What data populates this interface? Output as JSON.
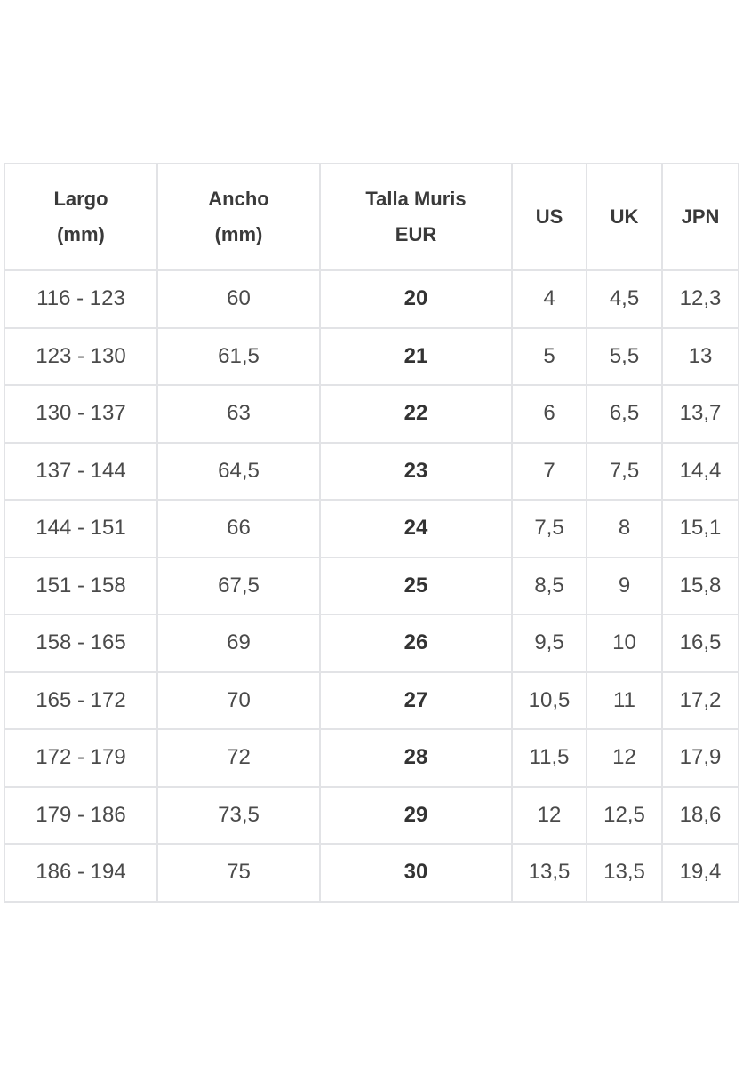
{
  "table": {
    "headers": [
      {
        "line1": "Largo",
        "line2": "(mm)"
      },
      {
        "line1": "Ancho",
        "line2": "(mm)"
      },
      {
        "line1": "Talla Muris",
        "line2": "EUR"
      },
      {
        "line1": "US",
        "line2": ""
      },
      {
        "line1": "UK",
        "line2": ""
      },
      {
        "line1": "JPN",
        "line2": ""
      }
    ],
    "rows": [
      [
        "116 - 123",
        "60",
        "20",
        "4",
        "4,5",
        "12,3"
      ],
      [
        "123 - 130",
        "61,5",
        "21",
        "5",
        "5,5",
        "13"
      ],
      [
        "130 - 137",
        "63",
        "22",
        "6",
        "6,5",
        "13,7"
      ],
      [
        "137 - 144",
        "64,5",
        "23",
        "7",
        "7,5",
        "14,4"
      ],
      [
        "144 - 151",
        "66",
        "24",
        "7,5",
        "8",
        "15,1"
      ],
      [
        "151 - 158",
        "67,5",
        "25",
        "8,5",
        "9",
        "15,8"
      ],
      [
        "158 - 165",
        "69",
        "26",
        "9,5",
        "10",
        "16,5"
      ],
      [
        "165 - 172",
        "70",
        "27",
        "10,5",
        "11",
        "17,2"
      ],
      [
        "172 - 179",
        "72",
        "28",
        "11,5",
        "12",
        "17,9"
      ],
      [
        "179 - 186",
        "73,5",
        "29",
        "12",
        "12,5",
        "18,6"
      ],
      [
        "186 - 194",
        "75",
        "30",
        "13,5",
        "13,5",
        "19,4"
      ]
    ]
  }
}
